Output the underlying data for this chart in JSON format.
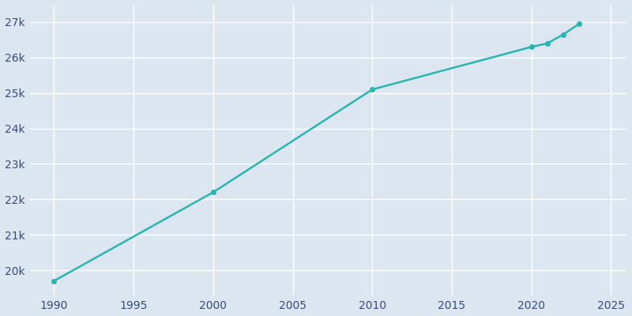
{
  "years": [
    1990,
    2000,
    2010,
    2020,
    2021,
    2022,
    2023
  ],
  "population": [
    19700,
    22200,
    25100,
    26300,
    26400,
    26650,
    26950
  ],
  "line_color": "#2ab5b0",
  "marker_color": "#2ab5b0",
  "background_color": "#dce6f0",
  "plot_bg_color": "#dce6f0",
  "grid_color": "#ffffff",
  "tick_label_color": "#3a4a7a",
  "xlim": [
    1988.5,
    2026
  ],
  "ylim": [
    19300,
    27500
  ],
  "xticks": [
    1990,
    1995,
    2000,
    2005,
    2010,
    2015,
    2020,
    2025
  ],
  "yticks": [
    20000,
    21000,
    22000,
    23000,
    24000,
    25000,
    26000,
    27000
  ],
  "ytick_labels": [
    "20k",
    "21k",
    "22k",
    "23k",
    "24k",
    "25k",
    "26k",
    "27k"
  ],
  "line_width": 1.8,
  "marker_size": 4
}
